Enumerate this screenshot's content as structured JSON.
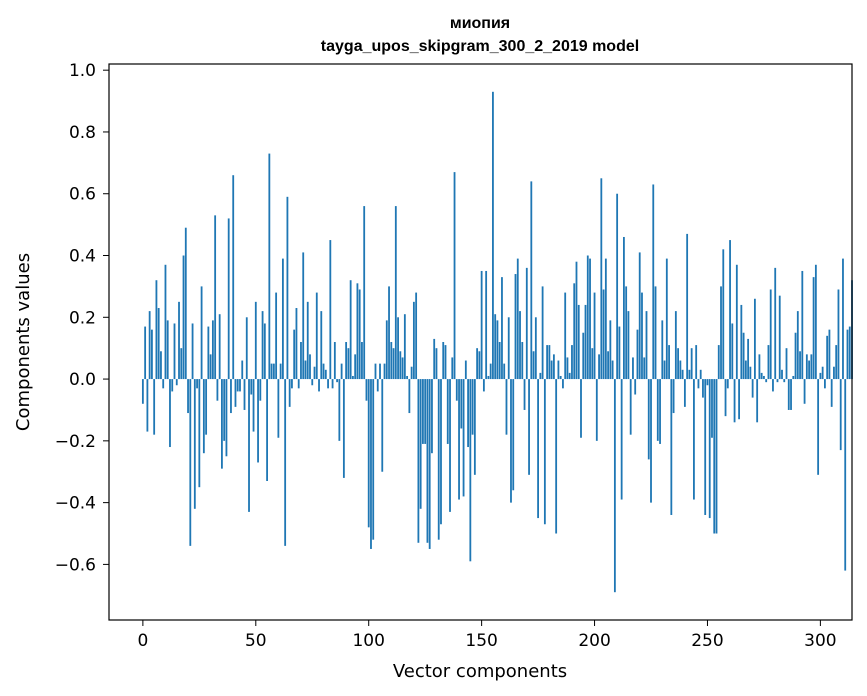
{
  "chart_data": {
    "type": "bar",
    "title": "миопия",
    "subtitle": "tayga_upos_skipgram_300_2_2019 model",
    "xlabel": "Vector components",
    "ylabel": "Components values",
    "xlim": [
      -15,
      314
    ],
    "ylim": [
      -0.78,
      1.02
    ],
    "x_ticks": [
      0,
      50,
      100,
      150,
      200,
      250,
      300
    ],
    "x_tick_labels": [
      "0",
      "50",
      "100",
      "150",
      "200",
      "250",
      "300"
    ],
    "y_ticks": [
      -0.6,
      -0.4,
      -0.2,
      0.0,
      0.2,
      0.4,
      0.6,
      0.8,
      1.0
    ],
    "y_tick_labels": [
      "−0.6",
      "−0.4",
      "−0.2",
      "0.0",
      "0.2",
      "0.4",
      "0.6",
      "0.8",
      "1.0"
    ],
    "grid": false,
    "bar_color": "#1f77b4",
    "values": [
      -0.08,
      0.17,
      -0.17,
      0.22,
      0.16,
      -0.18,
      0.32,
      0.23,
      0.09,
      -0.03,
      0.37,
      0.19,
      -0.22,
      -0.04,
      0.18,
      -0.02,
      0.25,
      0.1,
      0.4,
      0.49,
      -0.11,
      -0.54,
      0.18,
      -0.42,
      -0.03,
      -0.35,
      0.3,
      -0.24,
      -0.18,
      0.17,
      0.08,
      0.19,
      0.53,
      -0.07,
      0.21,
      -0.29,
      -0.2,
      -0.25,
      0.52,
      -0.11,
      0.66,
      -0.09,
      -0.04,
      -0.04,
      0.06,
      -0.1,
      0.2,
      -0.43,
      -0.05,
      -0.17,
      0.25,
      -0.27,
      -0.07,
      0.22,
      0.18,
      -0.33,
      0.73,
      0.05,
      0.05,
      0.28,
      -0.19,
      0.05,
      0.39,
      -0.54,
      0.59,
      -0.09,
      -0.03,
      0.16,
      0.23,
      -0.03,
      0.12,
      0.41,
      0.06,
      0.25,
      0.08,
      -0.02,
      0.04,
      0.28,
      -0.04,
      0.22,
      0.05,
      0.03,
      -0.03,
      0.45,
      -0.03,
      0.12,
      -0.01,
      -0.2,
      0.05,
      -0.32,
      0.12,
      0.1,
      0.32,
      0.01,
      0.08,
      0.31,
      0.29,
      0.12,
      0.56,
      -0.07,
      -0.48,
      -0.55,
      -0.52,
      0.05,
      -0.04,
      0.05,
      -0.3,
      0.05,
      0.19,
      0.3,
      0.12,
      0.1,
      0.56,
      0.2,
      0.09,
      0.07,
      0.21,
      0.01,
      -0.11,
      0.04,
      0.25,
      0.28,
      -0.53,
      -0.42,
      -0.21,
      -0.21,
      -0.53,
      -0.55,
      -0.24,
      0.13,
      0.1,
      -0.52,
      -0.47,
      0.12,
      0.11,
      -0.21,
      -0.43,
      0.07,
      0.67,
      -0.07,
      -0.39,
      -0.16,
      -0.38,
      0.06,
      -0.22,
      -0.59,
      -0.18,
      -0.31,
      0.1,
      0.09,
      0.35,
      -0.04,
      0.35,
      0.01,
      0.05,
      0.93,
      0.21,
      0.19,
      0.12,
      0.33,
      0.05,
      -0.18,
      0.2,
      -0.4,
      -0.36,
      0.34,
      0.39,
      0.22,
      0.12,
      -0.1,
      0.36,
      -0.31,
      0.64,
      0.09,
      0.2,
      -0.45,
      0.02,
      0.3,
      -0.47,
      0.11,
      0.11,
      0.06,
      0.08,
      -0.5,
      0.06,
      0.01,
      -0.03,
      0.28,
      0.07,
      0.02,
      0.11,
      0.31,
      0.38,
      0.24,
      -0.19,
      0.15,
      0.24,
      0.4,
      0.39,
      0.1,
      0.28,
      -0.2,
      0.08,
      0.65,
      0.29,
      0.39,
      0.09,
      0.19,
      0.06,
      -0.69,
      0.6,
      0.17,
      -0.39,
      0.46,
      0.3,
      0.22,
      -0.18,
      0.07,
      -0.05,
      0.16,
      0.41,
      0.28,
      0.07,
      0.22,
      -0.26,
      -0.4,
      0.63,
      0.3,
      -0.2,
      -0.21,
      0.19,
      0.06,
      0.39,
      0.11,
      -0.44,
      -0.11,
      0.22,
      0.1,
      0.06,
      0.03,
      -0.09,
      0.47,
      0.03,
      0.1,
      -0.39,
      0.11,
      -0.03,
      0.03,
      -0.06,
      -0.44,
      -0.02,
      -0.45,
      -0.19,
      -0.5,
      -0.5,
      0.11,
      0.3,
      0.42,
      -0.12,
      -0.03,
      0.45,
      0.18,
      -0.14,
      0.37,
      -0.13,
      0.24,
      0.15,
      0.06,
      0.13,
      0.04,
      -0.06,
      0.26,
      -0.14,
      0.08,
      0.02,
      0.01,
      -0.01,
      0.11,
      0.29,
      -0.04,
      0.36,
      -0.01,
      0.27,
      0.03,
      -0.01,
      0.1,
      -0.1,
      -0.1,
      0.01,
      0.15,
      0.22,
      0.09,
      0.35,
      -0.08,
      0.08,
      0.06,
      0.08,
      0.33,
      0.37,
      -0.31,
      0.02,
      0.04,
      -0.03,
      0.14,
      0.16,
      -0.09,
      0.04,
      0.11,
      0.29,
      -0.23,
      0.39,
      -0.62,
      0.16,
      0.17,
      0.32
    ]
  }
}
